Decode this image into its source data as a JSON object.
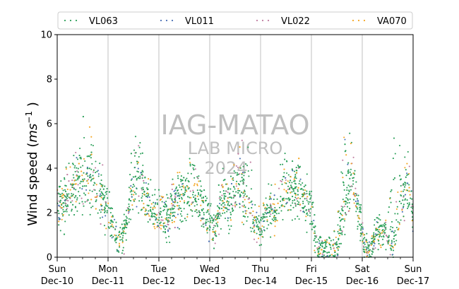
{
  "chart_data": {
    "type": "scatter",
    "title": "",
    "xlabel": "",
    "ylabel": "Wind speed (ms⁻¹)",
    "ylim": [
      0,
      10
    ],
    "xlim": [
      "2023-12-10",
      "2023-12-17"
    ],
    "yticks": [
      0,
      2,
      4,
      6,
      8,
      10
    ],
    "xticks": [
      {
        "day": "Sun",
        "date": "Dec-10"
      },
      {
        "day": "Mon",
        "date": "Dec-11"
      },
      {
        "day": "Tue",
        "date": "Dec-12"
      },
      {
        "day": "Wed",
        "date": "Dec-13"
      },
      {
        "day": "Thu",
        "date": "Dec-14"
      },
      {
        "day": "Fri",
        "date": "Dec-15"
      },
      {
        "day": "Sat",
        "date": "Dec-16"
      },
      {
        "day": "Sun",
        "date": "Dec-17"
      }
    ],
    "grid": "vertical lines at day boundaries",
    "legend_position": "top",
    "series": [
      {
        "name": "VL063",
        "color": "#2ca05a"
      },
      {
        "name": "VL011",
        "color": "#4a6fb5"
      },
      {
        "name": "VL022",
        "color": "#c07da0"
      },
      {
        "name": "VA070",
        "color": "#f5a623"
      }
    ],
    "mean_profile": {
      "unit": "days since Dec-10 00:00",
      "t": [
        0,
        0.1,
        0.25,
        0.4,
        0.55,
        0.7,
        0.85,
        1.0,
        1.1,
        1.2,
        1.3,
        1.45,
        1.55,
        1.65,
        1.8,
        1.95,
        2.05,
        2.2,
        2.35,
        2.55,
        2.7,
        2.85,
        3.0,
        3.1,
        3.25,
        3.4,
        3.55,
        3.7,
        3.85,
        4.0,
        4.15,
        4.3,
        4.45,
        4.6,
        4.75,
        4.9,
        5.0,
        5.1,
        5.25,
        5.4,
        5.5,
        5.65,
        5.8,
        5.95,
        6.05,
        6.15,
        6.3,
        6.45,
        6.6,
        6.75,
        6.9,
        7.0
      ],
      "y": [
        2.5,
        2.4,
        3.0,
        3.4,
        3.2,
        3.6,
        2.8,
        2.2,
        1.4,
        0.7,
        1.0,
        2.6,
        3.4,
        3.3,
        2.4,
        2.0,
        1.9,
        1.8,
        2.6,
        3.0,
        2.8,
        2.4,
        1.5,
        1.2,
        2.6,
        2.2,
        3.4,
        2.4,
        1.6,
        1.3,
        2.3,
        2.0,
        2.7,
        3.0,
        3.2,
        2.3,
        2.0,
        0.5,
        0.4,
        0.4,
        0.6,
        2.0,
        3.6,
        1.8,
        0.5,
        0.3,
        1.3,
        0.9,
        0.5,
        2.3,
        3.6,
        1.5
      ]
    },
    "peaks": [
      {
        "t": 0.55,
        "y": 5.7
      },
      {
        "t": 1.55,
        "y": 5.5
      },
      {
        "t": 2.65,
        "y": 4.5
      },
      {
        "t": 3.75,
        "y": 5.6
      },
      {
        "t": 4.45,
        "y": 4.3
      },
      {
        "t": 5.65,
        "y": 5.3
      },
      {
        "t": 6.65,
        "y": 5.8
      }
    ],
    "watermark": {
      "line1": "IAG-MATAO",
      "line2": "LAB MICRO",
      "line3": "2024"
    }
  }
}
